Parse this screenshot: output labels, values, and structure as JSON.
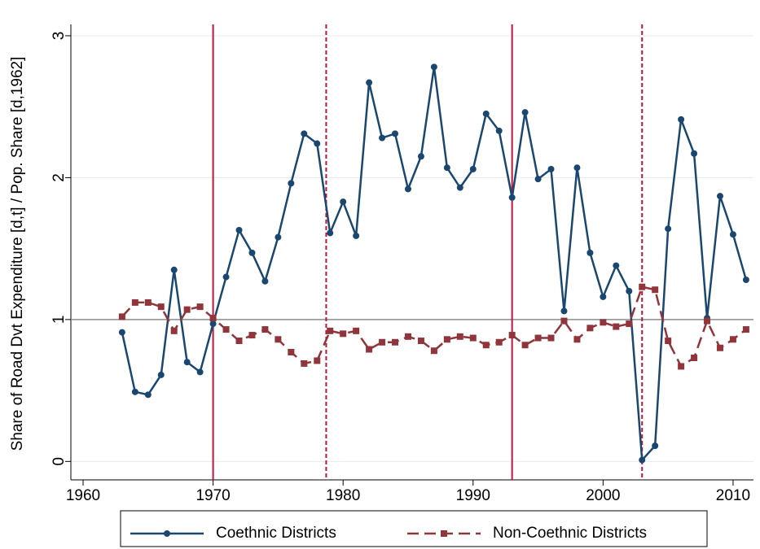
{
  "chart_data": {
    "type": "line",
    "y_label": "Share of Road Dvt Expenditure [d,t] / Pop. Share [d,1962]",
    "xlim": [
      1959.06,
      2011.57
    ],
    "xticks": [
      1960,
      1970,
      1980,
      1990,
      2000,
      2010
    ],
    "ylim": [
      -0.13,
      3.08
    ],
    "yticks": [
      0,
      1,
      2,
      3
    ],
    "grid": true,
    "reference_line": 1,
    "vlines": [
      {
        "x": 1970,
        "style": "solid"
      },
      {
        "x": 1978.7,
        "style": "dashed"
      },
      {
        "x": 1993,
        "style": "solid"
      },
      {
        "x": 2003,
        "style": "dashed"
      }
    ],
    "vline_color": "#c0143c",
    "legend": "bottom",
    "x": [
      1963,
      1964,
      1965,
      1966,
      1967,
      1968,
      1969,
      1970,
      1971,
      1972,
      1973,
      1974,
      1975,
      1976,
      1977,
      1978,
      1979,
      1980,
      1981,
      1982,
      1983,
      1984,
      1985,
      1986,
      1987,
      1988,
      1989,
      1990,
      1991,
      1992,
      1993,
      1994,
      1995,
      1996,
      1997,
      1998,
      1999,
      2000,
      2001,
      2002,
      2003,
      2004,
      2005,
      2006,
      2007,
      2008,
      2009,
      2010,
      2011
    ],
    "series": [
      {
        "name": "Coethnic Districts",
        "color": "#1a476f",
        "marker": "circle",
        "dash": "solid",
        "values": [
          0.91,
          0.49,
          0.47,
          0.61,
          1.35,
          0.7,
          0.63,
          0.97,
          1.3,
          1.63,
          1.47,
          1.27,
          1.58,
          1.96,
          2.31,
          2.24,
          1.61,
          1.83,
          1.59,
          2.67,
          2.28,
          2.31,
          1.92,
          2.15,
          2.78,
          2.07,
          1.93,
          2.06,
          2.45,
          2.33,
          1.86,
          2.46,
          1.99,
          2.06,
          1.06,
          2.07,
          1.47,
          1.16,
          1.38,
          1.2,
          0.01,
          0.11,
          1.64,
          2.41,
          2.17,
          1.01,
          1.87,
          1.6,
          1.28
        ]
      },
      {
        "name": "Non-Coethnic Districts",
        "color": "#90353b",
        "marker": "square",
        "dash": "dashed",
        "values": [
          1.02,
          1.12,
          1.12,
          1.09,
          0.92,
          1.07,
          1.09,
          1.01,
          0.93,
          0.85,
          0.89,
          0.93,
          0.86,
          0.77,
          0.69,
          0.71,
          0.92,
          0.9,
          0.92,
          0.79,
          0.84,
          0.84,
          0.88,
          0.85,
          0.78,
          0.86,
          0.88,
          0.87,
          0.82,
          0.84,
          0.89,
          0.82,
          0.87,
          0.87,
          0.99,
          0.86,
          0.94,
          0.98,
          0.95,
          0.97,
          1.23,
          1.21,
          0.85,
          0.67,
          0.73,
          0.99,
          0.8,
          0.86,
          0.93
        ]
      }
    ]
  }
}
